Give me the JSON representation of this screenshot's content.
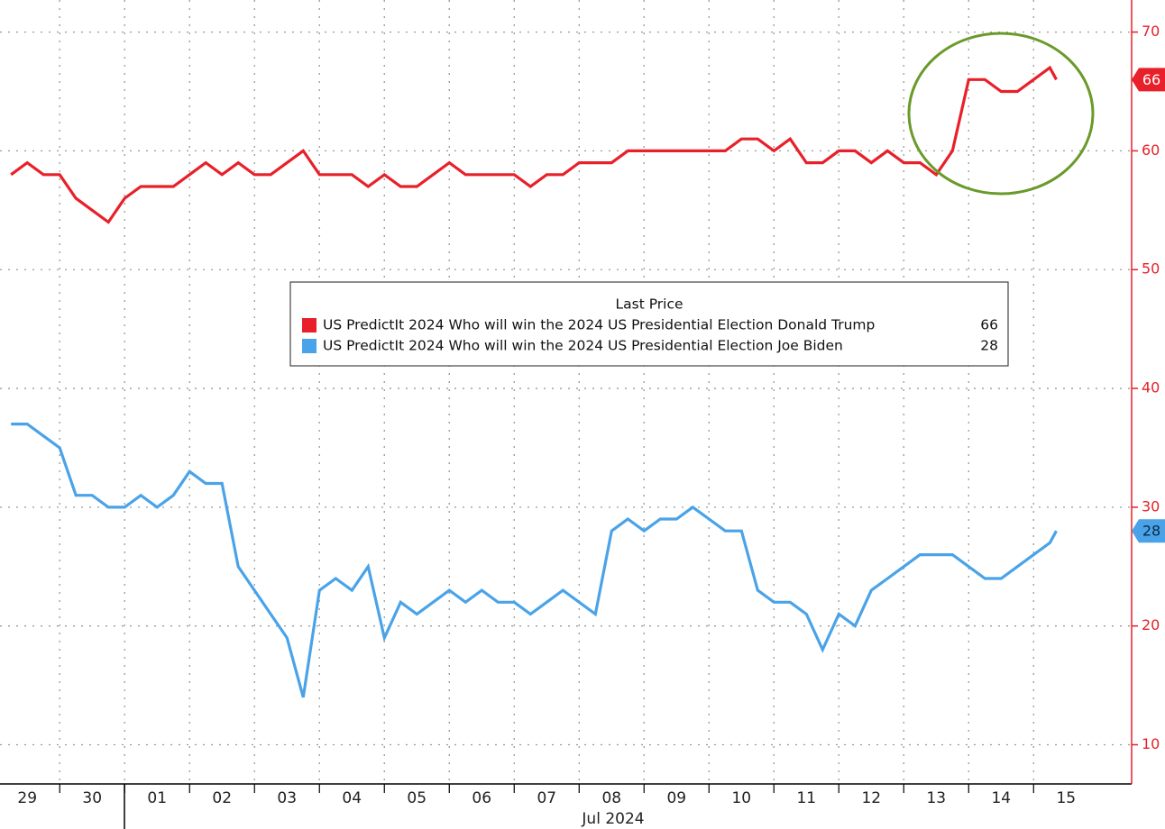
{
  "chart_data": {
    "type": "line",
    "legend_title": "Last Price",
    "xlabel": "Jul 2024",
    "xlim": [
      0.08,
      17.51
    ],
    "xticks": [
      {
        "value": 0,
        "label": "29"
      },
      {
        "value": 1,
        "label": "30"
      },
      {
        "value": 2,
        "label": "01"
      },
      {
        "value": 3,
        "label": "02"
      },
      {
        "value": 4,
        "label": "03"
      },
      {
        "value": 5,
        "label": "04"
      },
      {
        "value": 6,
        "label": "05"
      },
      {
        "value": 7,
        "label": "06"
      },
      {
        "value": 8,
        "label": "07"
      },
      {
        "value": 9,
        "label": "08"
      },
      {
        "value": 10,
        "label": "09"
      },
      {
        "value": 11,
        "label": "10"
      },
      {
        "value": 12,
        "label": "11"
      },
      {
        "value": 13,
        "label": "12"
      },
      {
        "value": 14,
        "label": "13"
      },
      {
        "value": 15,
        "label": "14"
      },
      {
        "value": 16,
        "label": "15"
      }
    ],
    "ylim": [
      6.7,
      72.7
    ],
    "yticks": [
      10,
      20,
      30,
      40,
      50,
      60,
      70
    ],
    "grid": true,
    "x": [
      0.25,
      0.5,
      0.75,
      1,
      1.25,
      1.5,
      1.75,
      2,
      2.25,
      2.5,
      2.75,
      3,
      3.25,
      3.5,
      3.75,
      4,
      4.25,
      4.5,
      4.75,
      5,
      5.25,
      5.5,
      5.75,
      6,
      6.25,
      6.5,
      6.75,
      7,
      7.25,
      7.5,
      7.75,
      8,
      8.25,
      8.5,
      8.75,
      9,
      9.25,
      9.5,
      9.75,
      10,
      10.25,
      10.5,
      10.75,
      11,
      11.25,
      11.5,
      11.75,
      12,
      12.25,
      12.5,
      12.75,
      13,
      13.25,
      13.5,
      13.75,
      14,
      14.25,
      14.5,
      14.75,
      15,
      15.25,
      15.5,
      15.75,
      16,
      16.25,
      16.35
    ],
    "series": [
      {
        "name": "US PredictIt 2024 Who will win the 2024 US Presidential Election Donald Trump",
        "color": "#e8202a",
        "values": [
          58,
          59,
          58,
          58,
          56,
          55,
          54,
          56,
          57,
          57,
          57,
          58,
          59,
          58,
          59,
          58,
          58,
          59,
          60,
          58,
          58,
          58,
          57,
          58,
          57,
          57,
          58,
          59,
          58,
          58,
          58,
          58,
          57,
          58,
          58,
          59,
          59,
          59,
          60,
          60,
          60,
          60,
          60,
          60,
          60,
          61,
          61,
          60,
          61,
          59,
          59,
          60,
          60,
          59,
          60,
          59,
          59,
          58,
          60,
          66,
          66,
          65,
          65,
          66,
          67,
          66
        ]
      },
      {
        "name": "US PredictIt 2024 Who will win the 2024 US Presidential Election Joe Biden",
        "color": "#4aa3e8",
        "values": [
          37,
          37,
          36,
          35,
          31,
          31,
          30,
          30,
          31,
          30,
          31,
          33,
          32,
          32,
          25,
          23,
          21,
          19,
          14,
          23,
          24,
          23,
          25,
          19,
          22,
          21,
          22,
          23,
          22,
          23,
          22,
          22,
          21,
          22,
          23,
          22,
          21,
          28,
          29,
          28,
          29,
          29,
          30,
          29,
          28,
          28,
          23,
          22,
          22,
          21,
          18,
          21,
          20,
          23,
          24,
          25,
          26,
          26,
          26,
          25,
          24,
          24,
          25,
          26,
          27,
          28
        ]
      }
    ]
  }
}
